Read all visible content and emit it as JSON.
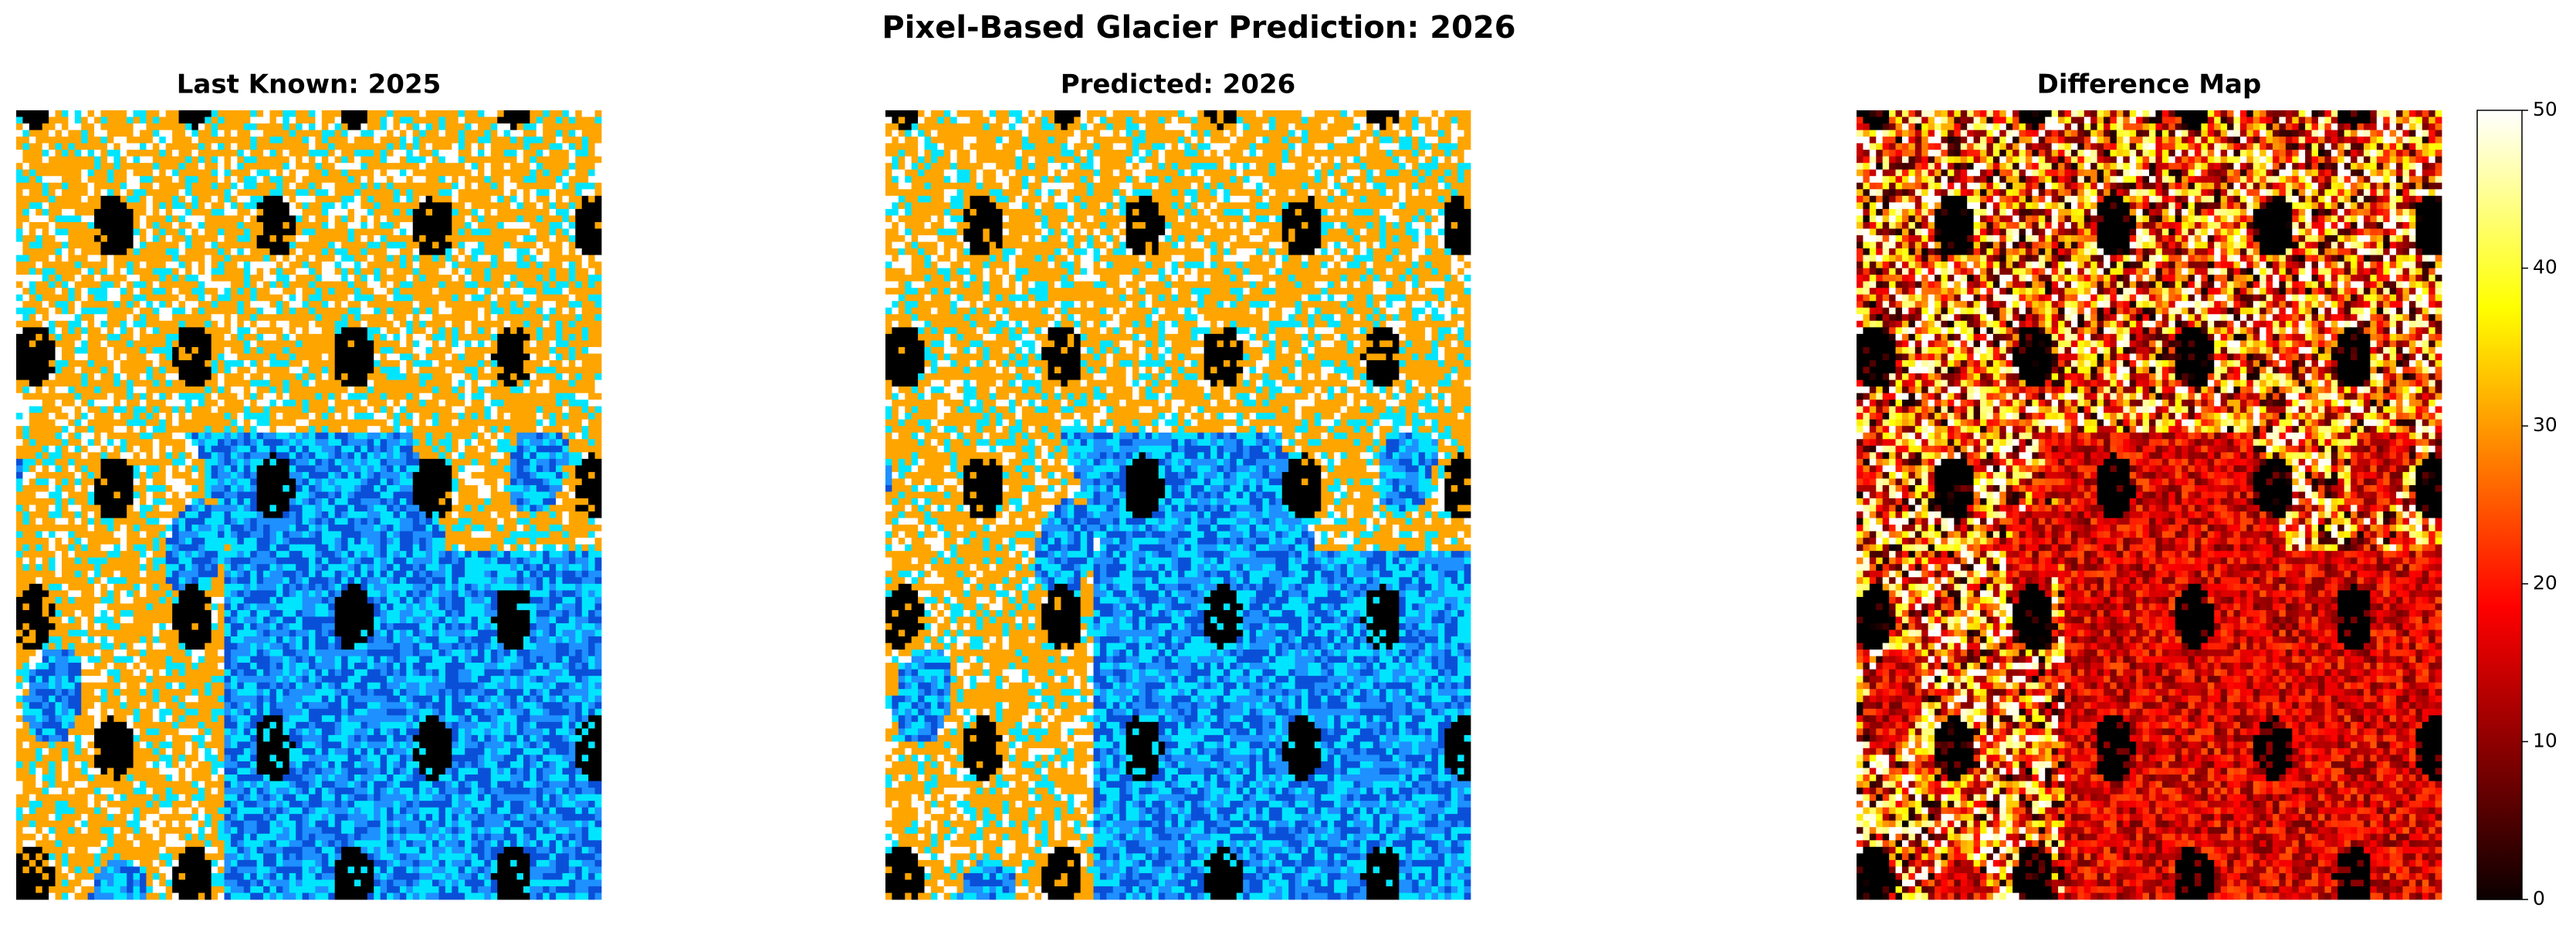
{
  "chart_data": {
    "type": "image",
    "title": "Pixel-Based Glacier Prediction: 2026",
    "panels": [
      {
        "title": "Last Known: 2025"
      },
      {
        "title": "Predicted: 2026"
      },
      {
        "title": "Difference Map"
      }
    ],
    "colorbar": {
      "cmap": "hot",
      "lim": [
        0,
        50
      ],
      "ticks": [
        0,
        10,
        20,
        30,
        40,
        50
      ]
    }
  }
}
